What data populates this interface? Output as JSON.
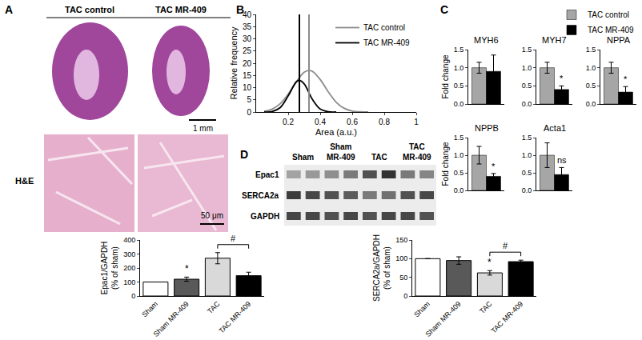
{
  "chart_data": [
    {
      "panel_label": "B",
      "type": "line",
      "x_label": "Area (a.u.)",
      "y_label": "Relative frequency",
      "xlim": [
        0,
        1
      ],
      "xticks": [
        0.2,
        0.4,
        0.6,
        0.8,
        1
      ],
      "ylim": [
        0,
        40
      ],
      "yticks": [
        0,
        5,
        10,
        15,
        20,
        25,
        30,
        35,
        40
      ],
      "legend": "upper right",
      "series": [
        {
          "name": "TAC control",
          "color": "#8c8c8c",
          "median": 0.33,
          "x": [
            0.05,
            0.1,
            0.15,
            0.2,
            0.25,
            0.3,
            0.33,
            0.35,
            0.4,
            0.45,
            0.5,
            0.55,
            0.6,
            0.65,
            0.7
          ],
          "values": [
            0.3,
            1.2,
            3.4,
            7.3,
            12.3,
            16.3,
            17,
            16.7,
            13.3,
            8.3,
            4,
            1.5,
            0.4,
            0.1,
            0
          ]
        },
        {
          "name": "TAC MR-409",
          "color": "#000000",
          "median": 0.27,
          "x": [
            0.05,
            0.1,
            0.15,
            0.2,
            0.25,
            0.27,
            0.3,
            0.35,
            0.4,
            0.45,
            0.5
          ],
          "values": [
            0,
            0.2,
            1.8,
            6.6,
            12.3,
            13,
            11.5,
            5.3,
            1.2,
            0.1,
            0
          ]
        }
      ]
    },
    {
      "panel_label": "C",
      "type": "bar",
      "title": "MYH6",
      "y_label": "Fold change",
      "tick_labels": "y",
      "legend": "upper right",
      "ylim": [
        0,
        1.5
      ],
      "yticks": [
        {
          "value": 0,
          "label": "0.0"
        },
        0.5,
        {
          "value": 1,
          "label": "1.0"
        },
        1.5
      ],
      "series": [
        {
          "name": "TAC control",
          "color": "#a6a6a6",
          "values": [
            1.0
          ],
          "errors": [
            0.15
          ]
        },
        {
          "name": "TAC MR-409",
          "color": "#000000",
          "values": [
            0.9
          ],
          "errors": [
            0.45
          ]
        }
      ]
    },
    {
      "type": "bar",
      "title": "MYH7",
      "tick_labels": "y",
      "ylim": [
        0,
        1.5
      ],
      "yticks": [
        {
          "value": 0,
          "label": "0.0"
        },
        0.5,
        {
          "value": 1,
          "label": "1.0"
        },
        1.5
      ],
      "series": [
        {
          "name": "TAC control",
          "color": "#a6a6a6",
          "values": [
            1.0
          ],
          "errors": [
            0.15
          ]
        },
        {
          "name": "TAC MR-409",
          "color": "#000000",
          "values": [
            0.4
          ],
          "errors": [
            0.1
          ],
          "annotation": "*"
        }
      ]
    },
    {
      "type": "bar",
      "title": "NPPA",
      "tick_labels": "y",
      "ylim": [
        0,
        1.5
      ],
      "yticks": [
        {
          "value": 0,
          "label": "0.0"
        },
        0.5,
        {
          "value": 1,
          "label": "1.0"
        },
        1.5
      ],
      "series": [
        {
          "name": "TAC control",
          "color": "#a6a6a6",
          "values": [
            1.0
          ],
          "errors": [
            0.15
          ]
        },
        {
          "name": "TAC MR-409",
          "color": "#000000",
          "values": [
            0.33
          ],
          "errors": [
            0.15
          ],
          "annotation": "*"
        }
      ]
    },
    {
      "type": "bar",
      "title": "NPPB",
      "y_label": "Fold change",
      "tick_labels": "y",
      "ylim": [
        0,
        1.5
      ],
      "yticks": [
        {
          "value": 0,
          "label": "0.0"
        },
        0.5,
        {
          "value": 1,
          "label": "1.0"
        },
        1.5
      ],
      "series": [
        {
          "name": "TAC control",
          "color": "#a6a6a6",
          "values": [
            1.0
          ],
          "errors": [
            0.25
          ]
        },
        {
          "name": "TAC MR-409",
          "color": "#000000",
          "values": [
            0.4
          ],
          "errors": [
            0.08
          ],
          "annotation": "*"
        }
      ]
    },
    {
      "type": "bar",
      "title": "Acta1",
      "tick_labels": "y",
      "ylim": [
        0,
        1.5
      ],
      "yticks": [
        {
          "value": 0,
          "label": "0.0"
        },
        0.5,
        {
          "value": 1,
          "label": "1.0"
        },
        1.5
      ],
      "series": [
        {
          "name": "TAC control",
          "color": "#a6a6a6",
          "values": [
            1.0
          ],
          "errors": [
            0.35
          ]
        },
        {
          "name": "TAC MR-409",
          "color": "#000000",
          "values": [
            0.45
          ],
          "errors": [
            0.2
          ],
          "annotation": "ns"
        }
      ]
    },
    {
      "type": "bar",
      "y_label": [
        "Epac1/GAPDH",
        "(% of sham)"
      ],
      "categories": [
        "Sham",
        "Sham MR-409",
        "TAC",
        "TAC MR-409"
      ],
      "values": [
        100,
        120,
        270,
        145
      ],
      "errors": [
        0,
        15,
        40,
        25
      ],
      "colors": [
        "#ffffff",
        "#595959",
        "#d9d9d9",
        "#000000"
      ],
      "ylim": [
        0,
        400
      ],
      "yticks": [
        0,
        100,
        200,
        300,
        400
      ],
      "annotations": [
        {
          "category": "Sham MR-409",
          "text": "*"
        }
      ],
      "comparisons": [
        {
          "from": "TAC",
          "to": "TAC MR-409",
          "text": "#"
        }
      ]
    },
    {
      "type": "bar",
      "y_label": [
        "SERCA2a/GAPDH",
        "(% of sham)"
      ],
      "categories": [
        "Sham",
        "Sham MR-409",
        "TAC",
        "TAC MR-409"
      ],
      "values": [
        100,
        95,
        62,
        92
      ],
      "errors": [
        0,
        10,
        6,
        4
      ],
      "colors": [
        "#ffffff",
        "#595959",
        "#d9d9d9",
        "#000000"
      ],
      "ylim": [
        0,
        150
      ],
      "yticks": [
        0,
        50,
        100,
        150
      ],
      "annotations": [
        {
          "category": "TAC",
          "text": "*"
        }
      ],
      "comparisons": [
        {
          "from": "TAC",
          "to": "TAC MR-409",
          "text": "#"
        }
      ]
    }
  ],
  "images": {
    "panel_label": "A",
    "columns": [
      "TAC control",
      "TAC MR-409"
    ],
    "row_label": "H&E",
    "scale_bars": [
      "1 mm",
      "50 μm"
    ]
  },
  "blot": {
    "panel_label": "D",
    "lanes": [
      "Sham",
      "Sham MR-409",
      "TAC",
      "TAC MR-409"
    ],
    "rows": [
      "Epac1",
      "SERCA2a",
      "GAPDH"
    ]
  }
}
